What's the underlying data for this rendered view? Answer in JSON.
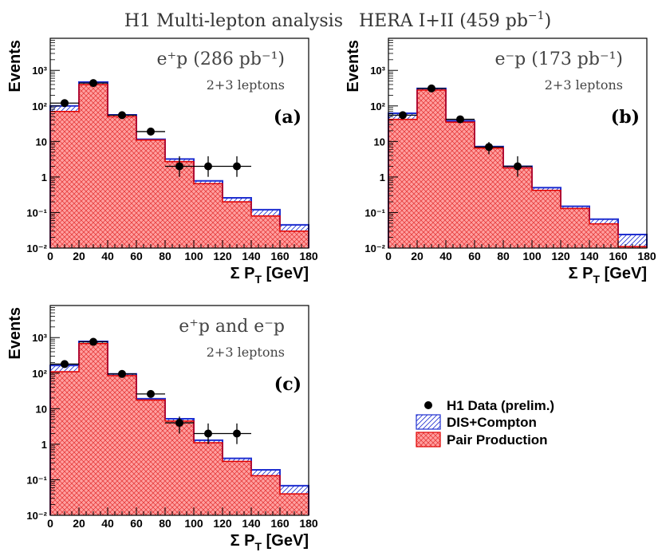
{
  "figure": {
    "title": "H1 Multi-lepton analysis",
    "subtitle_prefix": "HERA I+II (459 pb",
    "subtitle_exp": "−1",
    "subtitle_suffix": ")"
  },
  "legend": {
    "data_label": "H1 Data (prelim.)",
    "dis_label": "DIS+Compton",
    "pair_label": "Pair Production"
  },
  "colors": {
    "pair_fill": "#ff9999",
    "pair_line": "#e00000",
    "dis_line": "#1f2fd0",
    "data": "#000000"
  },
  "chart_data": [
    {
      "type": "bar",
      "panel_label": "(a)",
      "beam_text": "e⁺p (286 pb⁻¹)",
      "channel_text": "2+3 leptons",
      "xlabel": "Σ P_T [GeV]",
      "ylabel": "Events",
      "log_y": true,
      "xlim": [
        0,
        180
      ],
      "ylim": [
        0.01,
        8000
      ],
      "bin_edges": [
        0,
        20,
        40,
        60,
        80,
        100,
        120,
        140,
        160,
        180
      ],
      "series": [
        {
          "name": "Pair Production",
          "values": [
            70,
            400,
            50,
            11,
            2.7,
            0.65,
            0.2,
            0.08,
            0.03
          ]
        },
        {
          "name": "DIS+Compton",
          "values": [
            100,
            470,
            56,
            11.5,
            3.2,
            0.78,
            0.26,
            0.12,
            0.045
          ]
        },
        {
          "name": "H1 Data (prelim.)",
          "x": [
            10,
            30,
            50,
            70,
            90,
            110,
            130
          ],
          "y": [
            120,
            440,
            55,
            19,
            2,
            2,
            2
          ]
        }
      ]
    },
    {
      "type": "bar",
      "panel_label": "(b)",
      "beam_text": "e⁻p (173 pb⁻¹)",
      "channel_text": "2+3 leptons",
      "xlabel": "Σ P_T [GeV]",
      "ylabel": "Events",
      "log_y": true,
      "xlim": [
        0,
        180
      ],
      "ylim": [
        0.01,
        8000
      ],
      "bin_edges": [
        0,
        20,
        40,
        60,
        80,
        100,
        120,
        140,
        160,
        180
      ],
      "series": [
        {
          "name": "Pair Production",
          "values": [
            42,
            280,
            35,
            6.5,
            1.8,
            0.42,
            0.13,
            0.048,
            0.011
          ]
        },
        {
          "name": "DIS+Compton",
          "values": [
            62,
            310,
            38,
            7.2,
            2.0,
            0.5,
            0.15,
            0.065,
            0.024
          ]
        },
        {
          "name": "H1 Data (prelim.)",
          "x": [
            10,
            30,
            50,
            70,
            90
          ],
          "y": [
            55,
            310,
            42,
            7,
            2
          ]
        }
      ]
    },
    {
      "type": "bar",
      "panel_label": "(c)",
      "beam_text": "e⁺p and e⁻p",
      "channel_text": "2+3 leptons",
      "xlabel": "Σ P_T [GeV]",
      "ylabel": "Events",
      "log_y": true,
      "xlim": [
        0,
        180
      ],
      "ylim": [
        0.01,
        8000
      ],
      "bin_edges": [
        0,
        20,
        40,
        60,
        80,
        100,
        120,
        140,
        160,
        180
      ],
      "series": [
        {
          "name": "Pair Production",
          "values": [
            110,
            680,
            85,
            17.5,
            4.5,
            1.1,
            0.33,
            0.13,
            0.04
          ]
        },
        {
          "name": "DIS+Compton",
          "values": [
            165,
            780,
            95,
            19,
            5.2,
            1.3,
            0.4,
            0.19,
            0.068
          ]
        },
        {
          "name": "H1 Data (prelim.)",
          "x": [
            10,
            30,
            50,
            70,
            90,
            110,
            130
          ],
          "y": [
            180,
            760,
            95,
            26,
            4,
            2,
            2
          ]
        }
      ]
    }
  ]
}
